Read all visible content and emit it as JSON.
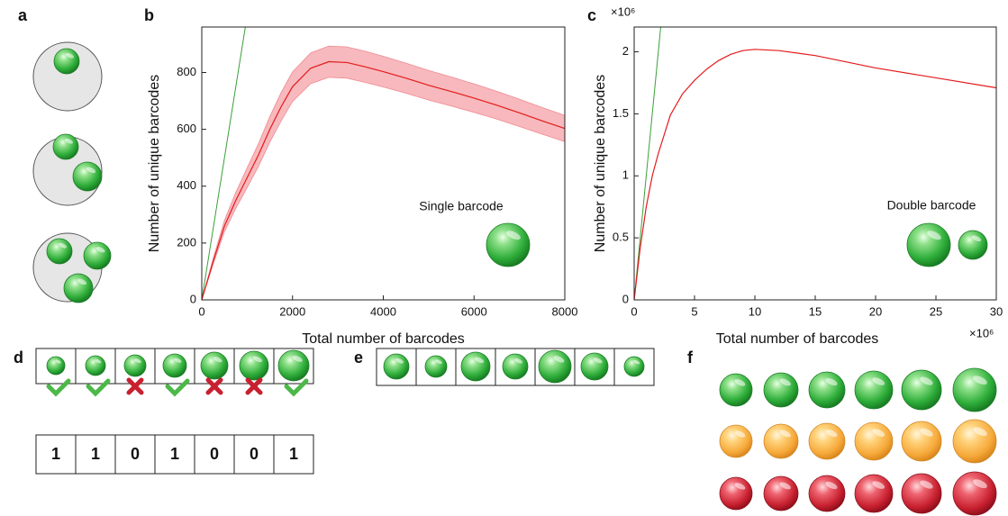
{
  "panels": [
    "a",
    "b",
    "c",
    "d",
    "e",
    "f"
  ],
  "bits": [
    1,
    1,
    0,
    1,
    0,
    0,
    1
  ],
  "chart_data": [
    {
      "type": "line",
      "xlabel": "Total number of barcodes",
      "ylabel": "Number of unique barcodes",
      "annotation": "Single barcode",
      "x": [
        0,
        250,
        500,
        750,
        1000,
        1250,
        1500,
        1750,
        2000,
        2400,
        2800,
        3200,
        3600,
        4000,
        4500,
        5000,
        5500,
        6000,
        6500,
        7000,
        7500,
        8000
      ],
      "values": [
        0,
        135,
        260,
        350,
        430,
        510,
        600,
        680,
        750,
        815,
        838,
        835,
        820,
        803,
        780,
        755,
        733,
        710,
        685,
        658,
        630,
        603
      ],
      "band_upper": [
        0,
        145,
        280,
        378,
        465,
        550,
        645,
        730,
        802,
        869,
        893,
        890,
        875,
        857,
        833,
        807,
        784,
        760,
        734,
        706,
        677,
        649
      ],
      "band_lower": [
        0,
        125,
        240,
        322,
        395,
        470,
        555,
        630,
        698,
        761,
        783,
        780,
        765,
        749,
        727,
        703,
        682,
        660,
        636,
        610,
        583,
        557
      ],
      "color": "#e41a1c",
      "band_color": "#f7b9bd",
      "reference": {
        "x": [
          0,
          960
        ],
        "values": [
          0,
          960
        ],
        "color": "#3aa03a"
      },
      "xlim": [
        0,
        8000
      ],
      "xticks": [
        0,
        2000,
        4000,
        6000,
        8000
      ],
      "ylim": [
        0,
        960
      ],
      "yticks": [
        0,
        200,
        400,
        600,
        800
      ]
    },
    {
      "type": "line",
      "xlabel": "Total number of barcodes",
      "ylabel": "Number of unique barcodes",
      "annotation": "Double barcode",
      "x_multiplier": "×10⁶",
      "y_multiplier": "×10⁶",
      "x": [
        0,
        0.5,
        1,
        1.5,
        2,
        3,
        4,
        5,
        6,
        7,
        8,
        9,
        10,
        12,
        15,
        20,
        25,
        30
      ],
      "values": [
        0,
        0.42,
        0.75,
        1.0,
        1.18,
        1.49,
        1.66,
        1.77,
        1.86,
        1.93,
        1.98,
        2.01,
        2.02,
        2.01,
        1.97,
        1.87,
        1.79,
        1.71
      ],
      "color": "#e41a1c",
      "reference": {
        "x": [
          0,
          2.2
        ],
        "values": [
          0,
          2.2
        ],
        "color": "#3aa03a"
      },
      "xlim": [
        0,
        30
      ],
      "xticks": [
        0,
        5,
        10,
        15,
        20,
        25,
        30
      ],
      "ylim": [
        0,
        2.2
      ],
      "yticks": [
        0,
        0.5,
        1,
        1.5,
        2
      ]
    }
  ]
}
